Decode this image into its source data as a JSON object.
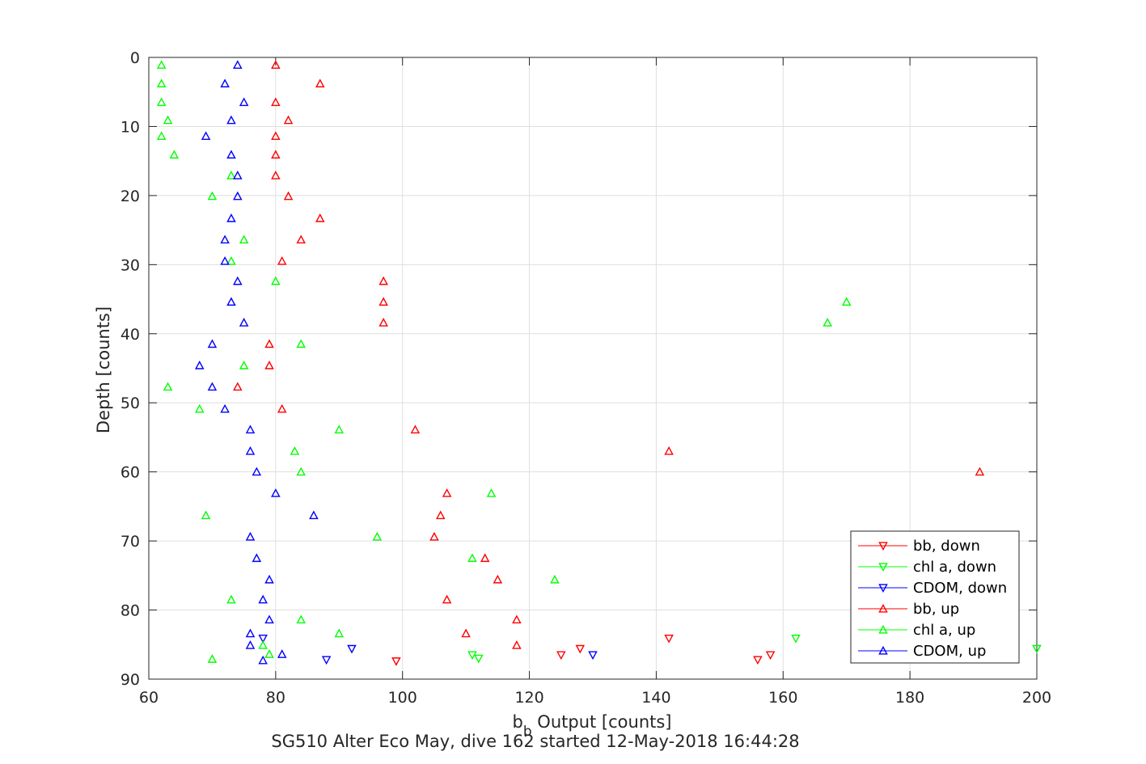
{
  "chart_data": {
    "type": "scatter",
    "xlabel_main": "b",
    "xlabel_sub": "b",
    "xlabel_rest": " Output [counts]",
    "ylabel": "Depth [counts]",
    "caption": "SG510 Alter Eco May, dive 162 started 12-May-2018 16:44:28",
    "xlim": [
      60,
      200
    ],
    "ylim": [
      0,
      90
    ],
    "y_reversed": true,
    "xticks": [
      60,
      80,
      100,
      120,
      140,
      160,
      180,
      200
    ],
    "yticks": [
      0,
      10,
      20,
      30,
      40,
      50,
      60,
      70,
      80,
      90
    ],
    "grid": true,
    "legend_position": "bottom-right",
    "colors": {
      "red": "#ff0000",
      "green": "#00ff00",
      "blue": "#0000ff"
    },
    "series": [
      {
        "name": "bb, down",
        "color": "#ff0000",
        "marker": "triangle-down",
        "points": [
          [
            142,
            84.1
          ],
          [
            128,
            85.6
          ],
          [
            125,
            86.5
          ],
          [
            158,
            86.5
          ],
          [
            156,
            87.2
          ],
          [
            99,
            87.4
          ]
        ]
      },
      {
        "name": "chl a, down",
        "color": "#00ff00",
        "marker": "triangle-down",
        "points": [
          [
            162,
            84.1
          ],
          [
            200,
            85.6
          ],
          [
            111,
            86.5
          ],
          [
            112,
            87.0
          ]
        ]
      },
      {
        "name": "CDOM, down",
        "color": "#0000ff",
        "marker": "triangle-down",
        "points": [
          [
            78,
            84.1
          ],
          [
            92,
            85.6
          ],
          [
            130,
            86.5
          ],
          [
            88,
            87.2
          ]
        ]
      },
      {
        "name": "bb, up",
        "color": "#ff0000",
        "marker": "triangle-up",
        "points": [
          [
            80,
            1.1
          ],
          [
            87,
            3.8
          ],
          [
            80,
            6.5
          ],
          [
            82,
            9.1
          ],
          [
            80,
            11.4
          ],
          [
            80,
            14.1
          ],
          [
            80,
            17.1
          ],
          [
            82,
            20.1
          ],
          [
            87,
            23.3
          ],
          [
            84,
            26.4
          ],
          [
            81,
            29.5
          ],
          [
            97,
            32.4
          ],
          [
            97,
            35.4
          ],
          [
            97,
            38.4
          ],
          [
            79,
            41.5
          ],
          [
            79,
            44.6
          ],
          [
            74,
            47.7
          ],
          [
            81,
            50.9
          ],
          [
            102,
            53.9
          ],
          [
            142,
            57.0
          ],
          [
            191,
            60.0
          ],
          [
            107,
            63.1
          ],
          [
            106,
            66.3
          ],
          [
            105,
            69.4
          ],
          [
            113,
            72.5
          ],
          [
            115,
            75.6
          ],
          [
            107,
            78.5
          ],
          [
            118,
            81.4
          ],
          [
            110,
            83.4
          ],
          [
            118,
            85.1
          ]
        ]
      },
      {
        "name": "chl a, up",
        "color": "#00ff00",
        "marker": "triangle-up",
        "points": [
          [
            62,
            1.1
          ],
          [
            62,
            3.8
          ],
          [
            62,
            6.5
          ],
          [
            63,
            9.1
          ],
          [
            62,
            11.4
          ],
          [
            64,
            14.1
          ],
          [
            73,
            17.1
          ],
          [
            70,
            20.1
          ],
          [
            75,
            26.4
          ],
          [
            73,
            29.5
          ],
          [
            80,
            32.4
          ],
          [
            170,
            35.4
          ],
          [
            167,
            38.4
          ],
          [
            84,
            41.5
          ],
          [
            75,
            44.6
          ],
          [
            63,
            47.7
          ],
          [
            68,
            50.9
          ],
          [
            90,
            53.9
          ],
          [
            83,
            57.0
          ],
          [
            84,
            60.0
          ],
          [
            114,
            63.1
          ],
          [
            69,
            66.3
          ],
          [
            96,
            69.4
          ],
          [
            111,
            72.5
          ],
          [
            124,
            75.6
          ],
          [
            73,
            78.5
          ],
          [
            84,
            81.4
          ],
          [
            90,
            83.4
          ],
          [
            78,
            85.1
          ],
          [
            79,
            86.4
          ],
          [
            70,
            87.1
          ]
        ]
      },
      {
        "name": "CDOM, up",
        "color": "#0000ff",
        "marker": "triangle-up",
        "points": [
          [
            74,
            1.1
          ],
          [
            72,
            3.8
          ],
          [
            75,
            6.5
          ],
          [
            73,
            9.1
          ],
          [
            69,
            11.4
          ],
          [
            73,
            14.1
          ],
          [
            74,
            17.1
          ],
          [
            74,
            20.1
          ],
          [
            73,
            23.3
          ],
          [
            72,
            26.4
          ],
          [
            72,
            29.5
          ],
          [
            74,
            32.4
          ],
          [
            73,
            35.4
          ],
          [
            75,
            38.4
          ],
          [
            70,
            41.5
          ],
          [
            68,
            44.6
          ],
          [
            70,
            47.7
          ],
          [
            72,
            50.9
          ],
          [
            76,
            53.9
          ],
          [
            76,
            57.0
          ],
          [
            77,
            60.0
          ],
          [
            80,
            63.1
          ],
          [
            86,
            66.3
          ],
          [
            76,
            69.4
          ],
          [
            77,
            72.5
          ],
          [
            79,
            75.6
          ],
          [
            78,
            78.5
          ],
          [
            79,
            81.4
          ],
          [
            76,
            83.4
          ],
          [
            76,
            85.1
          ],
          [
            81,
            86.4
          ],
          [
            78,
            87.3
          ]
        ]
      }
    ]
  }
}
